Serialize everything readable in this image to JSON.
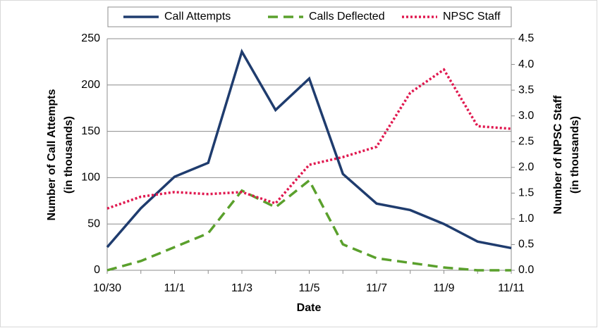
{
  "chart_data": {
    "type": "line",
    "xlabel": "Date",
    "ylabel": [
      "Number of Call Attempts",
      "(in thousands)"
    ],
    "y2label": [
      "Number of NPSC Staff",
      "(in thousands)"
    ],
    "categories": [
      "10/30",
      null,
      "11/1",
      null,
      "11/3",
      null,
      "11/5",
      null,
      "11/7",
      null,
      "11/9",
      null,
      "11/11"
    ],
    "series": [
      {
        "name": "Call Attempts",
        "color": "#1f3c6e",
        "dash": "solid",
        "values": [
          25,
          67,
          101,
          116,
          236,
          173,
          207,
          104,
          72,
          65,
          50,
          31,
          24
        ]
      },
      {
        "name": "Calls Deflected",
        "color": "#5aa02c",
        "dash": "dashed",
        "values": [
          0,
          10,
          25,
          40,
          86,
          68,
          97,
          28,
          13,
          8,
          3,
          0,
          0
        ]
      },
      {
        "name": "NPSC Staff",
        "color": "#e0184f",
        "dash": "dotted",
        "axis": "y2",
        "values": [
          1.2,
          1.43,
          1.52,
          1.48,
          1.52,
          1.3,
          2.05,
          2.2,
          2.4,
          3.45,
          3.9,
          2.8,
          2.75
        ]
      }
    ],
    "ylim": [
      0,
      250
    ],
    "yticks": [
      0,
      50,
      100,
      150,
      200,
      250
    ],
    "y2lim": [
      0,
      4.5
    ],
    "y2ticks": [
      {
        "value": 0,
        "label": "0.0"
      },
      0.5,
      {
        "value": 1,
        "label": "1.0"
      },
      1.5,
      {
        "value": 2,
        "label": "2.0"
      },
      2.5,
      {
        "value": 3,
        "label": "3.0"
      },
      3.5,
      {
        "value": 4,
        "label": "4.0"
      },
      4.5
    ],
    "grid": true,
    "legend": "top"
  }
}
